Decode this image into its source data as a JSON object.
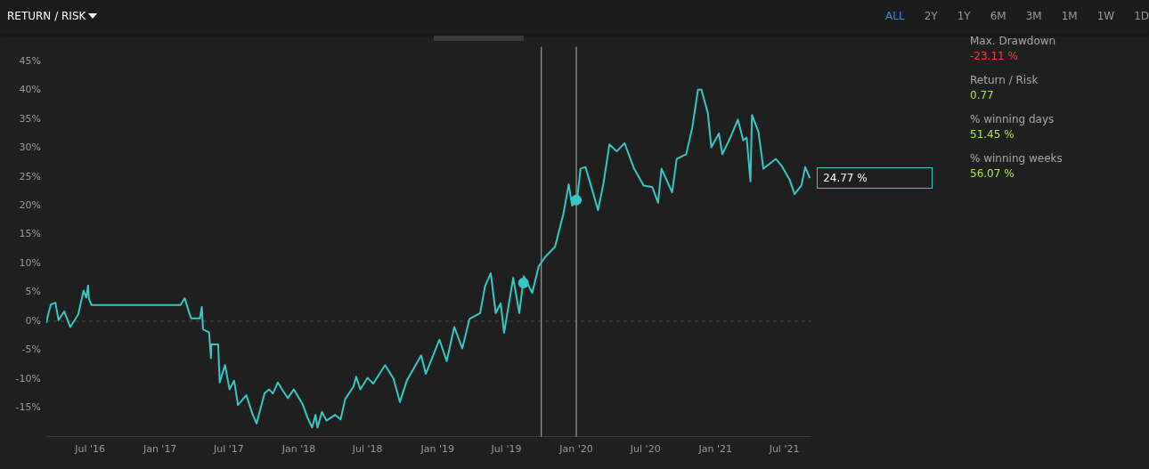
{
  "chart_data": [
    {
      "type": "line",
      "title": "RETURN / RISK",
      "grid": false,
      "legend": false,
      "marker": "none",
      "line_style": "solid",
      "xlim": [
        "2016-03-08",
        "2021-09-08"
      ],
      "xticks": [
        {
          "value": "2016-07-01",
          "label": "Jul '16"
        },
        {
          "value": "2017-01-01",
          "label": "Jan '17"
        },
        {
          "value": "2017-07-01",
          "label": "Jul '17"
        },
        {
          "value": "2018-01-01",
          "label": "Jan '18"
        },
        {
          "value": "2018-07-01",
          "label": "Jul '18"
        },
        {
          "value": "2019-01-01",
          "label": "Jan '19"
        },
        {
          "value": "2019-07-01",
          "label": "Jul '19"
        },
        {
          "value": "2020-01-01",
          "label": "Jan '20"
        },
        {
          "value": "2020-07-01",
          "label": "Jul '20"
        },
        {
          "value": "2021-01-01",
          "label": "Jan '21"
        },
        {
          "value": "2021-07-01",
          "label": "Jul '21"
        }
      ],
      "ylim": [
        -20,
        47.5
      ],
      "yticks": [
        {
          "value": -15,
          "label": "-15%"
        },
        {
          "value": -10,
          "label": "-10%"
        },
        {
          "value": -5,
          "label": "-5%"
        },
        {
          "value": 0,
          "label": "0%"
        },
        {
          "value": 5,
          "label": "5%"
        },
        {
          "value": 10,
          "label": "10%"
        },
        {
          "value": 15,
          "label": "15%"
        },
        {
          "value": 20,
          "label": "20%"
        },
        {
          "value": 25,
          "label": "25%"
        },
        {
          "value": 30,
          "label": "30%"
        },
        {
          "value": 35,
          "label": "35%"
        },
        {
          "value": 40,
          "label": "40%"
        },
        {
          "value": 45,
          "label": "45%"
        }
      ],
      "x": [
        "2016-03-08",
        "2016-03-13",
        "2016-03-20",
        "2016-04-01",
        "2016-04-09",
        "2016-04-24",
        "2016-05-10",
        "2016-05-31",
        "2016-06-14",
        "2016-06-21",
        "2016-06-26",
        "2016-06-28",
        "2016-07-05",
        "2017-02-24",
        "2017-03-07",
        "2017-03-19",
        "2017-03-24",
        "2017-04-16",
        "2017-04-21",
        "2017-04-24",
        "2017-05-10",
        "2017-05-15",
        "2017-05-16",
        "2017-06-03",
        "2017-06-07",
        "2017-06-21",
        "2017-07-03",
        "2017-07-15",
        "2017-07-25",
        "2017-08-16",
        "2017-09-01",
        "2017-09-12",
        "2017-10-03",
        "2017-10-15",
        "2017-10-25",
        "2017-11-07",
        "2017-11-21",
        "2017-12-03",
        "2017-12-19",
        "2018-01-12",
        "2018-01-24",
        "2018-02-05",
        "2018-02-14",
        "2018-02-19",
        "2018-03-03",
        "2018-03-15",
        "2018-04-07",
        "2018-04-21",
        "2018-05-03",
        "2018-05-25",
        "2018-06-01",
        "2018-06-12",
        "2018-07-01",
        "2018-07-16",
        "2018-08-16",
        "2018-09-07",
        "2018-09-24",
        "2018-10-12",
        "2018-11-19",
        "2018-12-01",
        "2019-01-06",
        "2019-01-25",
        "2019-02-14",
        "2019-03-07",
        "2019-03-26",
        "2019-04-23",
        "2019-05-06",
        "2019-05-21",
        "2019-06-03",
        "2019-06-16",
        "2019-06-25",
        "2019-07-19",
        "2019-08-04",
        "2019-08-16",
        "2019-09-07",
        "2019-09-24",
        "2019-10-12",
        "2019-11-06",
        "2019-11-28",
        "2019-12-12",
        "2019-12-21",
        "2020-01-03",
        "2020-01-12",
        "2020-01-25",
        "2020-02-12",
        "2020-02-27",
        "2020-03-12",
        "2020-03-28",
        "2020-04-16",
        "2020-05-07",
        "2020-06-01",
        "2020-06-26",
        "2020-07-19",
        "2020-08-03",
        "2020-08-12",
        "2020-09-09",
        "2020-09-21",
        "2020-10-16",
        "2020-11-01",
        "2020-11-16",
        "2020-11-25",
        "2020-12-12",
        "2020-12-21",
        "2021-01-10",
        "2021-01-19",
        "2021-02-09",
        "2021-03-01",
        "2021-03-15",
        "2021-03-24",
        "2021-04-03",
        "2021-04-07",
        "2021-04-24",
        "2021-05-07",
        "2021-06-09",
        "2021-06-24",
        "2021-07-15",
        "2021-07-28",
        "2021-08-15",
        "2021-08-25",
        "2021-09-06"
      ],
      "series": [
        {
          "color": "#38c7c4",
          "values": [
            -0.3,
            1.2,
            2.9,
            3.2,
            0.2,
            1.7,
            -1.0,
            1.2,
            5.3,
            4.1,
            6.2,
            3.9,
            2.8,
            2.8,
            4.0,
            1.4,
            0.5,
            0.5,
            2.5,
            -1.4,
            -1.9,
            -6.4,
            -4.0,
            -4.0,
            -10.6,
            -7.6,
            -11.8,
            -10.3,
            -14.5,
            -12.8,
            -16.0,
            -17.7,
            -12.5,
            -11.8,
            -12.5,
            -10.6,
            -12.1,
            -13.3,
            -11.8,
            -14.5,
            -16.7,
            -18.4,
            -16.2,
            -18.4,
            -15.7,
            -17.2,
            -16.2,
            -17.0,
            -13.5,
            -11.3,
            -9.6,
            -11.8,
            -9.8,
            -10.8,
            -7.6,
            -9.9,
            -14.0,
            -10.3,
            -5.9,
            -9.1,
            -3.2,
            -6.9,
            -1.0,
            -4.7,
            0.4,
            1.4,
            6.1,
            8.3,
            1.4,
            3.1,
            -2.0,
            7.5,
            1.4,
            7.8,
            4.9,
            9.5,
            11.2,
            12.9,
            18.6,
            23.7,
            20.0,
            21.0,
            26.4,
            26.7,
            22.7,
            19.2,
            23.7,
            30.6,
            29.4,
            30.8,
            26.4,
            23.5,
            23.2,
            20.5,
            26.4,
            22.3,
            28.1,
            28.9,
            33.5,
            40.1,
            40.1,
            36.0,
            30.1,
            32.5,
            28.9,
            31.8,
            34.9,
            31.3,
            31.8,
            24.2,
            35.7,
            32.8,
            26.4,
            28.1,
            26.9,
            24.5,
            22.0,
            23.5,
            26.7,
            24.77
          ]
        },
        {
          "type": "scatter",
          "marker": "circle",
          "color": "#38c7c4",
          "x": [
            "2019-08-15",
            "2020-01-01"
          ],
          "values": [
            6.6,
            21.0
          ]
        }
      ],
      "ref_lines": [
        {
          "axis": "y",
          "value": 0,
          "color": "#4a4a4a",
          "line_style": "dashed"
        },
        {
          "axis": "x",
          "value": "2019-10-01",
          "color": "#b8b8b8"
        },
        {
          "axis": "x",
          "value": "2020-01-01",
          "color": "#b8b8b8"
        }
      ],
      "annotations": [
        {
          "text": "24.77 %",
          "x": "2021-09-06",
          "y": 24.77
        }
      ]
    },
    {
      "type": "other",
      "annotations": [
        "ALL",
        "2Y",
        "1Y",
        "6M",
        "3M",
        "1M",
        "1W",
        "1D"
      ]
    },
    {
      "type": "other",
      "annotations": [
        "Max. Drawdown",
        "-23.11 %",
        "Return / Risk",
        "0.77",
        "% winning days",
        "51.45 %",
        "% winning weeks",
        "56.07 %"
      ]
    }
  ]
}
